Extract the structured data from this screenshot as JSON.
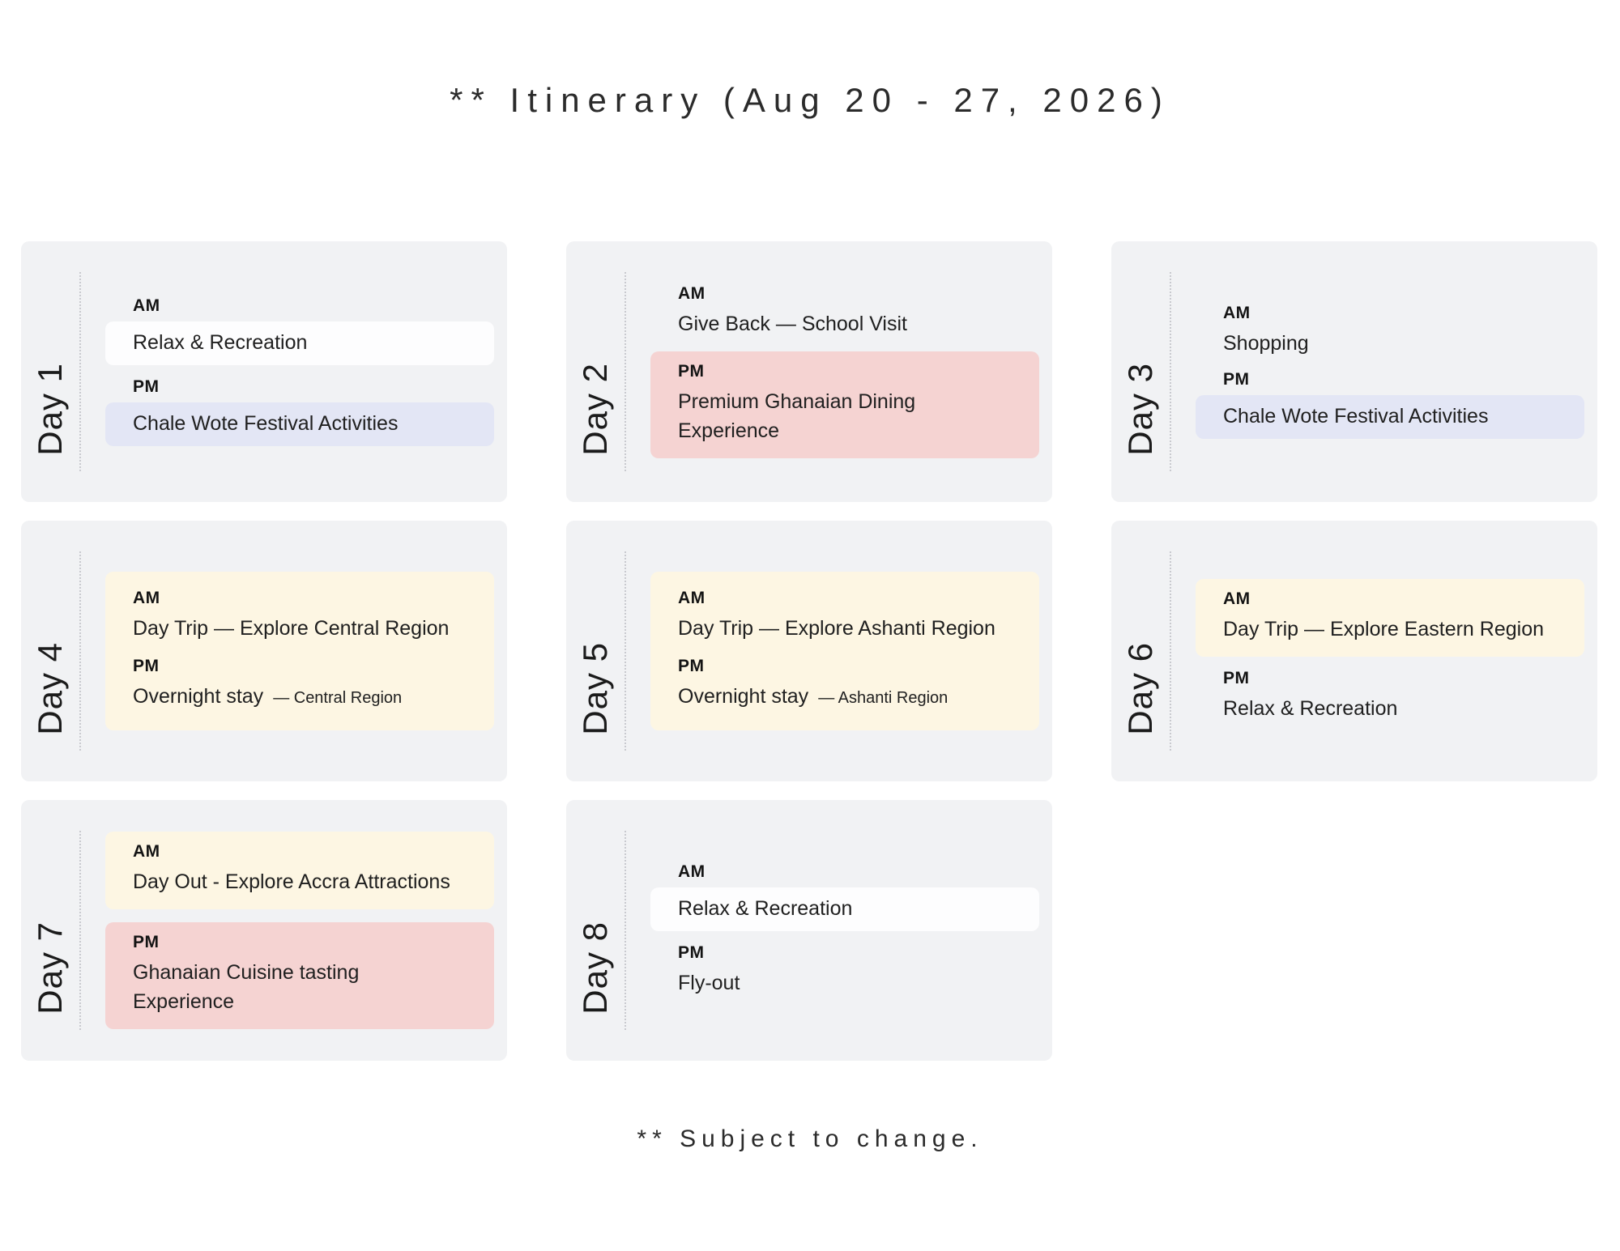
{
  "title": "** Itinerary (Aug 20 - 27, 2026)",
  "footer": "** Subject to change.",
  "colors": {
    "card_bg": "#f1f2f4",
    "highlight_white": "#fdfdfe",
    "highlight_lavender": "#e3e6f5",
    "highlight_pink": "#f5d3d2",
    "highlight_cream": "#fdf6e3"
  },
  "days": [
    {
      "day": "Day 1",
      "am": {
        "label": "AM",
        "activity": "Relax & Recreation"
      },
      "pm": {
        "label": "PM",
        "activity": "Chale Wote Festival Activities"
      }
    },
    {
      "day": "Day 2",
      "am": {
        "label": "AM",
        "activity": "Give Back — School Visit"
      },
      "pm": {
        "label": "PM",
        "activity": "Premium Ghanaian Dining Experience"
      }
    },
    {
      "day": "Day 3",
      "am": {
        "label": "AM",
        "activity": "Shopping"
      },
      "pm": {
        "label": "PM",
        "activity": "Chale Wote Festival Activities"
      }
    },
    {
      "day": "Day 4",
      "am": {
        "label": "AM",
        "activity": "Day Trip — Explore Central Region"
      },
      "pm": {
        "label": "PM",
        "activity": "Overnight stay",
        "suffix": "— Central Region"
      }
    },
    {
      "day": "Day 5",
      "am": {
        "label": "AM",
        "activity": "Day Trip — Explore Ashanti Region"
      },
      "pm": {
        "label": "PM",
        "activity": "Overnight stay",
        "suffix": "— Ashanti Region"
      }
    },
    {
      "day": "Day 6",
      "am": {
        "label": "AM",
        "activity": "Day Trip — Explore Eastern Region"
      },
      "pm": {
        "label": "PM",
        "activity": "Relax & Recreation"
      }
    },
    {
      "day": "Day 7",
      "am": {
        "label": "AM",
        "activity": "Day Out - Explore Accra Attractions"
      },
      "pm": {
        "label": "PM",
        "activity": "Ghanaian Cuisine tasting Experience"
      }
    },
    {
      "day": "Day 8",
      "am": {
        "label": "AM",
        "activity": "Relax & Recreation"
      },
      "pm": {
        "label": "PM",
        "activity": "Fly-out"
      }
    }
  ]
}
